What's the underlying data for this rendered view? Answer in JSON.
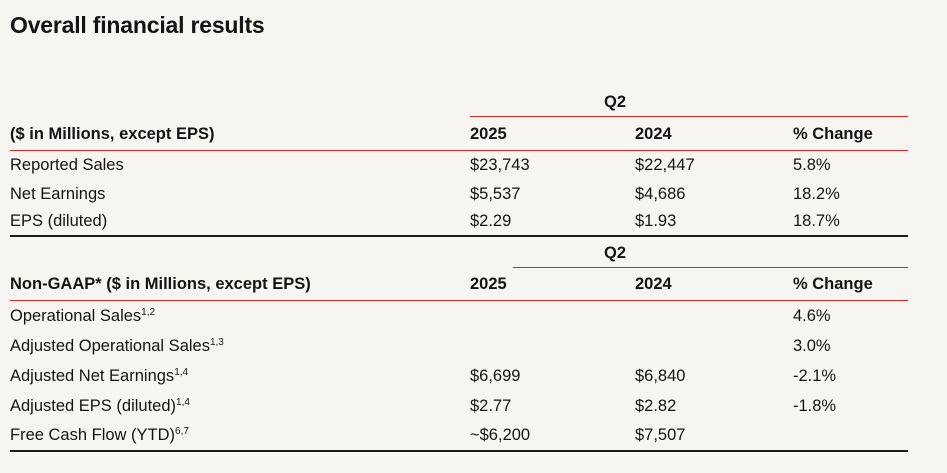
{
  "page_title": "Overall financial results",
  "colors": {
    "background": "#f7f5f2",
    "text": "#141414",
    "accent_red_rule": "#da291c",
    "black_rule": "#1c1c1c"
  },
  "sections": [
    {
      "quarter_label": "Q2",
      "header": {
        "label": "($ in Millions, except EPS)",
        "col_2025": "2025",
        "col_2024": "2024",
        "col_change": "% Change"
      },
      "rows": [
        {
          "label": "Reported Sales",
          "sup": "",
          "v2025": "$23,743",
          "v2024": "$22,447",
          "change": "5.8%"
        },
        {
          "label": "Net Earnings",
          "sup": "",
          "v2025": "$5,537",
          "v2024": "$4,686",
          "change": "18.2%"
        },
        {
          "label": "EPS (diluted)",
          "sup": "",
          "v2025": "$2.29",
          "v2024": "$1.93",
          "change": "18.7%"
        }
      ]
    },
    {
      "quarter_label": "Q2",
      "header": {
        "label": "Non-GAAP* ($ in Millions, except EPS)",
        "col_2025": "2025",
        "col_2024": "2024",
        "col_change": "% Change"
      },
      "rows": [
        {
          "label": "Operational Sales",
          "sup": "1,2",
          "v2025": "",
          "v2024": "",
          "change": "4.6%"
        },
        {
          "label": "Adjusted Operational Sales",
          "sup": "1,3",
          "v2025": "",
          "v2024": "",
          "change": "3.0%"
        },
        {
          "label": "Adjusted Net Earnings",
          "sup": "1,4",
          "v2025": "$6,699",
          "v2024": "$6,840",
          "change": "-2.1%"
        },
        {
          "label": "Adjusted EPS (diluted)",
          "sup": "1,4",
          "v2025": "$2.77",
          "v2024": "$2.82",
          "change": "-1.8%"
        },
        {
          "label": "Free Cash Flow (YTD)",
          "sup": "6,7",
          "v2025": "~$6,200",
          "v2024": "$7,507",
          "change": ""
        }
      ]
    }
  ]
}
